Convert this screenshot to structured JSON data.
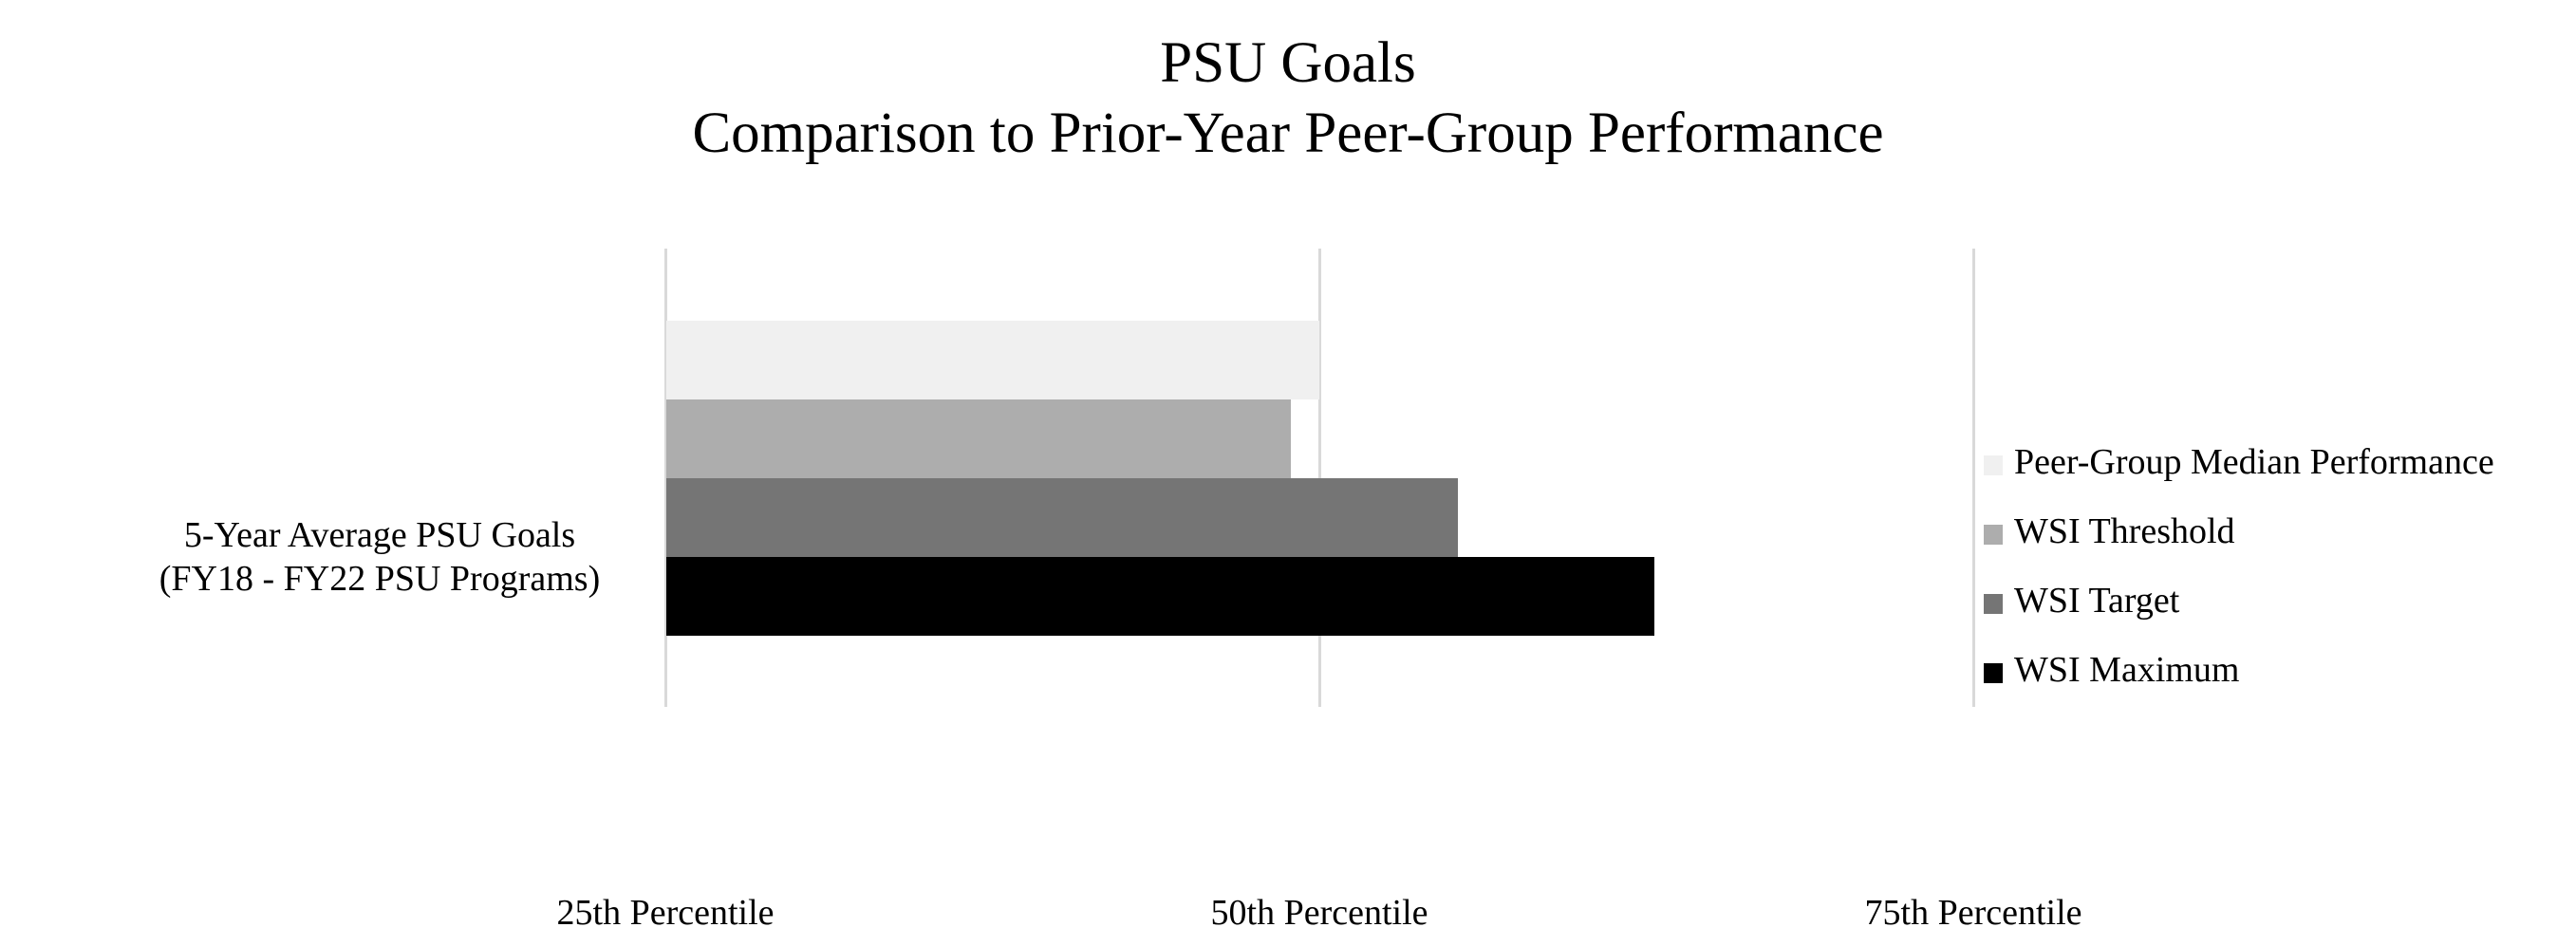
{
  "title": {
    "line1": "PSU Goals",
    "line2": "Comparison to Prior-Year Peer-Group Performance"
  },
  "category_label": {
    "line1": "5-Year Average PSU Goals",
    "line2": "(FY18 - FY22 PSU Programs)"
  },
  "x_ticks": [
    {
      "label": "25th Percentile",
      "value": 25
    },
    {
      "label": "50th Percentile",
      "value": 50
    },
    {
      "label": "75th Percentile",
      "value": 75
    }
  ],
  "legend": [
    {
      "label": "Peer-Group Median Performance",
      "color": "#f0f0f0"
    },
    {
      "label": "WSI Threshold",
      "color": "#adadad"
    },
    {
      "label": "WSI Target",
      "color": "#757575"
    },
    {
      "label": "WSI Maximum",
      "color": "#000000"
    }
  ],
  "chart_data": {
    "type": "bar",
    "orientation": "horizontal",
    "title": "PSU Goals\nComparison to Prior-Year Peer-Group Performance",
    "categories": [
      "5-Year Average PSU Goals (FY18 - FY22 PSU Programs)"
    ],
    "series": [
      {
        "name": "Peer-Group Median Performance",
        "color": "#f0f0f0",
        "values": [
          50.0
        ]
      },
      {
        "name": "WSI Threshold",
        "color": "#adadad",
        "values": [
          48.9
        ]
      },
      {
        "name": "WSI Target",
        "color": "#757575",
        "values": [
          55.3
        ]
      },
      {
        "name": "WSI Maximum",
        "color": "#000000",
        "values": [
          62.8
        ]
      }
    ],
    "xlabel": "",
    "ylabel": "",
    "xlim": [
      25,
      75
    ],
    "x_tick_labels": [
      "25th Percentile",
      "50th Percentile",
      "75th Percentile"
    ],
    "x_tick_values": [
      25,
      50,
      75
    ],
    "grid": "vertical",
    "legend_position": "right",
    "units": "percentile of peer group"
  }
}
